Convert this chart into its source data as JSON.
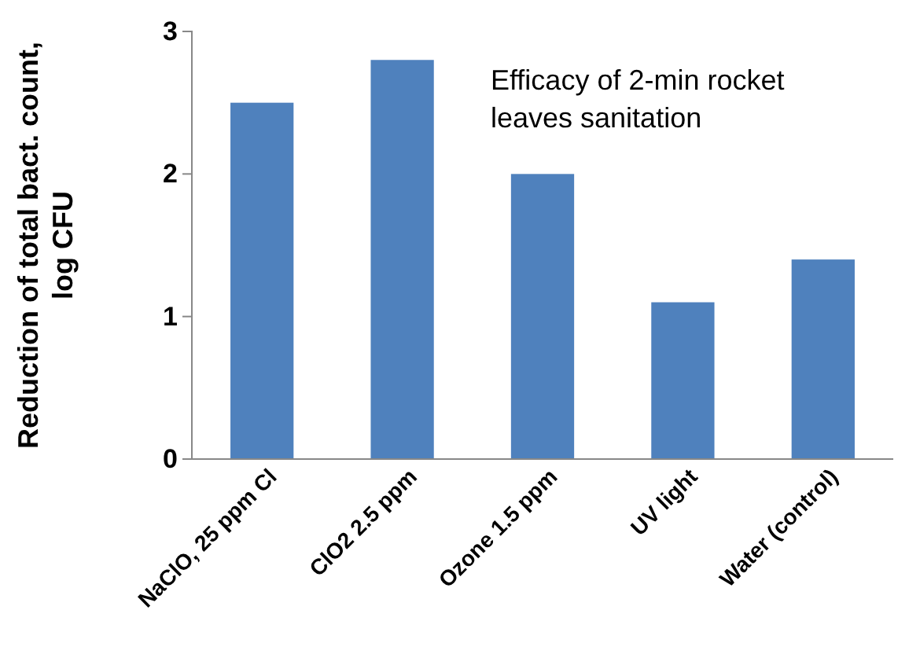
{
  "chart_data": {
    "type": "bar",
    "title": "Efficacy of 2-min rocket leaves sanitation",
    "ylabel": "Reduction of total bact. count, log CFU",
    "categories": [
      "NaClO, 25 ppm Cl",
      "ClO2 2.5 ppm",
      "Ozone 1.5 ppm",
      "UV light",
      "Water (control)"
    ],
    "values": [
      2.5,
      2.8,
      2.0,
      1.1,
      1.4
    ],
    "color": "#4f81bd",
    "ylim": [
      0,
      3
    ],
    "yticks": [
      0,
      1,
      2,
      3
    ],
    "grid": false
  }
}
